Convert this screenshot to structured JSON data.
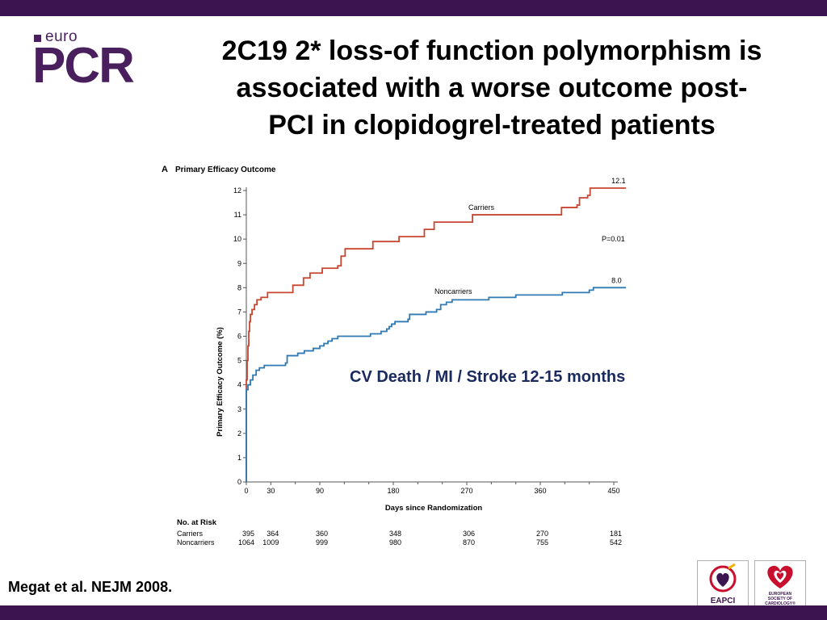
{
  "header": {
    "logo_small": "euro",
    "logo_large": "PCR",
    "title_lines": [
      "2C19 2* loss-of function polymorphism is",
      "associated with a worse outcome post-",
      "PCI in clopidogrel-treated patients"
    ]
  },
  "chart_data": {
    "type": "line",
    "panel_label": "A",
    "title": "Primary Efficacy Outcome",
    "xlabel": "Days since Randomization",
    "ylabel": "Primary Efficacy Outcome (%)",
    "xlim": [
      0,
      450
    ],
    "ylim": [
      0,
      12
    ],
    "x_ticks": [
      0,
      30,
      90,
      180,
      270,
      360,
      450
    ],
    "y_ticks": [
      0,
      1,
      2,
      3,
      4,
      5,
      6,
      7,
      8,
      9,
      10,
      11,
      12
    ],
    "grid": false,
    "p_value": "P=0.01",
    "series": [
      {
        "name": "Carriers",
        "color": "#c8452f",
        "end_label": "12.1",
        "points": [
          [
            0,
            0
          ],
          [
            0,
            4.2
          ],
          [
            1,
            5.0
          ],
          [
            2,
            5.6
          ],
          [
            3,
            6.2
          ],
          [
            4,
            6.6
          ],
          [
            5,
            6.9
          ],
          [
            7,
            7.1
          ],
          [
            10,
            7.3
          ],
          [
            13,
            7.5
          ],
          [
            18,
            7.6
          ],
          [
            26,
            7.8
          ],
          [
            40,
            7.8
          ],
          [
            57,
            8.1
          ],
          [
            70,
            8.4
          ],
          [
            78,
            8.6
          ],
          [
            90,
            8.6
          ],
          [
            93,
            8.8
          ],
          [
            112,
            8.9
          ],
          [
            116,
            9.3
          ],
          [
            121,
            9.6
          ],
          [
            155,
            9.9
          ],
          [
            185,
            9.9
          ],
          [
            187,
            10.1
          ],
          [
            215,
            10.1
          ],
          [
            218,
            10.4
          ],
          [
            230,
            10.7
          ],
          [
            275,
            10.7
          ],
          [
            277,
            11.0
          ],
          [
            385,
            11.0
          ],
          [
            386,
            11.3
          ],
          [
            405,
            11.4
          ],
          [
            408,
            11.7
          ],
          [
            418,
            11.8
          ],
          [
            421,
            12.1
          ],
          [
            465,
            12.1
          ]
        ]
      },
      {
        "name": "Noncarriers",
        "color": "#2f7ab2",
        "end_label": "8.0",
        "points": [
          [
            0,
            0
          ],
          [
            0,
            3.8
          ],
          [
            2,
            4.0
          ],
          [
            5,
            4.2
          ],
          [
            8,
            4.4
          ],
          [
            12,
            4.6
          ],
          [
            16,
            4.7
          ],
          [
            22,
            4.8
          ],
          [
            40,
            4.8
          ],
          [
            48,
            4.9
          ],
          [
            50,
            5.2
          ],
          [
            63,
            5.3
          ],
          [
            71,
            5.4
          ],
          [
            82,
            5.5
          ],
          [
            90,
            5.6
          ],
          [
            95,
            5.7
          ],
          [
            100,
            5.8
          ],
          [
            105,
            5.9
          ],
          [
            112,
            6.0
          ],
          [
            150,
            6.0
          ],
          [
            152,
            6.1
          ],
          [
            165,
            6.2
          ],
          [
            172,
            6.3
          ],
          [
            175,
            6.4
          ],
          [
            178,
            6.5
          ],
          [
            182,
            6.6
          ],
          [
            198,
            6.7
          ],
          [
            200,
            6.9
          ],
          [
            220,
            7.0
          ],
          [
            233,
            7.1
          ],
          [
            238,
            7.3
          ],
          [
            245,
            7.4
          ],
          [
            252,
            7.5
          ],
          [
            295,
            7.5
          ],
          [
            297,
            7.6
          ],
          [
            327,
            7.6
          ],
          [
            330,
            7.7
          ],
          [
            385,
            7.7
          ],
          [
            387,
            7.8
          ],
          [
            420,
            7.9
          ],
          [
            425,
            8.0
          ],
          [
            465,
            8.0
          ]
        ]
      }
    ],
    "at_risk": {
      "title": "No. at Risk",
      "x": [
        0,
        30,
        90,
        180,
        270,
        360,
        450
      ],
      "rows": [
        {
          "label": "Carriers",
          "values": [
            "395",
            "364",
            "360",
            "348",
            "306",
            "270",
            "181"
          ]
        },
        {
          "label": "Noncarriers",
          "values": [
            "1064",
            "1009",
            "999",
            "980",
            "870",
            "755",
            "542"
          ]
        }
      ]
    }
  },
  "annotation": "CV Death / MI / Stroke 12-15 months",
  "citation": "Megat et al. NEJM 2008.",
  "badges": {
    "eapci": "EAPCI",
    "esc": [
      "EUROPEAN",
      "SOCIETY OF",
      "CARDIOLOGY®"
    ]
  },
  "colors": {
    "brand": "#3b1450",
    "heart_red": "#c8102e"
  }
}
